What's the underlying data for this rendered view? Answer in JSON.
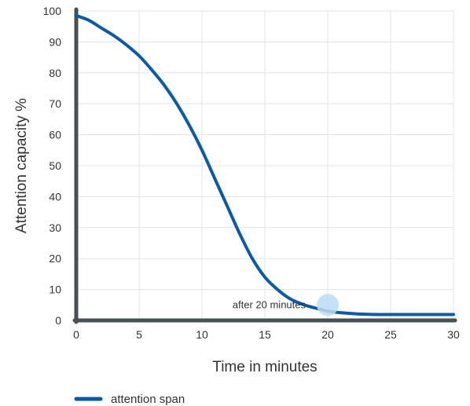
{
  "chart_data": {
    "type": "line",
    "xlabel": "Time in minutes",
    "ylabel": "Attention capacity %",
    "xlim": [
      0,
      30
    ],
    "ylim": [
      0,
      100
    ],
    "x_ticks": [
      0,
      5,
      10,
      15,
      20,
      25,
      30
    ],
    "y_ticks": [
      0,
      10,
      20,
      30,
      40,
      50,
      60,
      70,
      80,
      90,
      100
    ],
    "grid": true,
    "legend_position": "bottom-left",
    "series": [
      {
        "name": "attention span",
        "color": "#0a5aa8",
        "x": [
          0,
          1,
          2,
          3,
          4,
          5,
          6,
          7,
          8,
          9,
          10,
          11,
          12,
          13,
          14,
          15,
          16,
          17,
          18,
          19,
          20,
          21,
          22,
          23,
          24,
          25,
          26,
          27,
          28,
          29,
          30
        ],
        "y": [
          98.5,
          97,
          94.5,
          92,
          89,
          85.5,
          81,
          76,
          70,
          63,
          55,
          46,
          37,
          28,
          20,
          14,
          10,
          7,
          5.2,
          4,
          3,
          2.5,
          2.2,
          2,
          1.9,
          1.9,
          1.9,
          1.9,
          1.9,
          1.9,
          1.9
        ]
      }
    ],
    "annotation": {
      "text": "after 20 minutes",
      "x": 20,
      "y": 5,
      "marker_color": "#bcdcf3"
    },
    "colors": {
      "axis": "#4a4f55",
      "grid": "#dfe3e8",
      "line": "#0a5aa8"
    }
  }
}
